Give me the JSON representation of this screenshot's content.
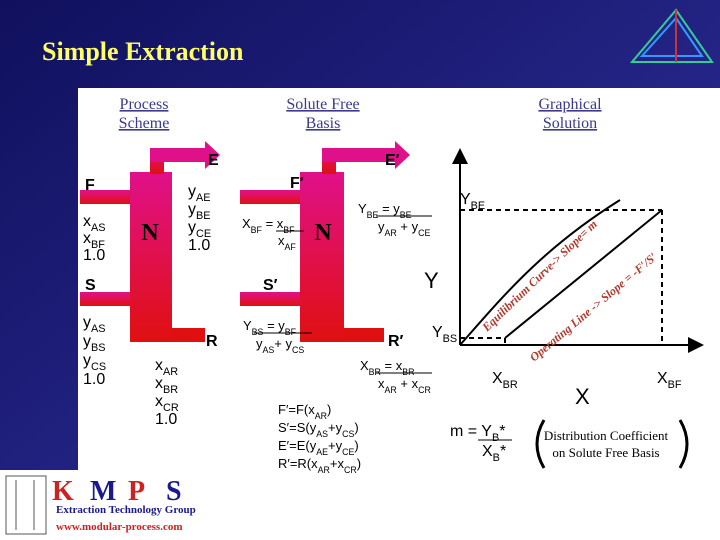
{
  "title": "Simple Extraction",
  "sections": {
    "process_scheme": [
      "Process",
      "Scheme"
    ],
    "solute_free_basis": [
      "Solute Free",
      "Basis"
    ],
    "graphical_solution": [
      "Graphical",
      "Solution"
    ]
  },
  "process_scheme": {
    "column": "N",
    "feed": {
      "label": "F",
      "composition": [
        [
          {
            "base": "x",
            "sub": "AS"
          }
        ],
        [
          {
            "base": "x",
            "sub": "BF"
          }
        ],
        [
          {
            "base": "1.0"
          }
        ]
      ]
    },
    "extract": {
      "label": "E",
      "composition": [
        [
          {
            "base": "y",
            "sub": "AE"
          }
        ],
        [
          {
            "base": "y",
            "sub": "BE"
          }
        ],
        [
          {
            "base": "y",
            "sub": "CE"
          }
        ],
        [
          {
            "base": "1.0"
          }
        ]
      ]
    },
    "solvent": {
      "label": "S",
      "composition": [
        [
          {
            "base": "y",
            "sub": "AS"
          }
        ],
        [
          {
            "base": "y",
            "sub": "BS"
          }
        ],
        [
          {
            "base": "y",
            "sub": "CS"
          }
        ],
        [
          {
            "base": "1.0"
          }
        ]
      ]
    },
    "raffinate": {
      "label": "R",
      "composition": [
        [
          {
            "base": "x",
            "sub": "AR"
          }
        ],
        [
          {
            "base": "x",
            "sub": "BR"
          }
        ],
        [
          {
            "base": "x",
            "sub": "CR"
          }
        ],
        [
          {
            "base": "1.0"
          }
        ]
      ]
    }
  },
  "solute_free_basis": {
    "column": "N",
    "feed": "F′",
    "extract": "E′",
    "solvent": "S′",
    "raffinate": "R′",
    "x_bf": {
      "numerator": [
        {
          "base": "X",
          "sub": "BF"
        },
        {
          "base": " = x",
          "sub": "BF"
        }
      ],
      "denominator": [
        {
          "base": "x",
          "sub": "AF"
        }
      ]
    },
    "y_be": {
      "numerator": [
        {
          "base": "Y",
          "sub": "BE"
        },
        {
          "base": " = y",
          "sub": "BE"
        }
      ],
      "denominator": [
        {
          "base": "y",
          "sub": "AR"
        },
        {
          "base": " + y",
          "sub": "CE"
        }
      ]
    },
    "y_bs": {
      "numerator": [
        {
          "base": "Y",
          "sub": "BS"
        },
        {
          "base": " = y",
          "sub": "BF"
        }
      ],
      "denominator": [
        {
          "base": "y",
          "sub": "AS"
        },
        {
          "base": "+ y",
          "sub": "CS"
        }
      ]
    },
    "x_br": {
      "numerator": [
        {
          "base": "X",
          "sub": "BR"
        },
        {
          "base": " = x",
          "sub": "BR"
        }
      ],
      "denominator": [
        {
          "base": "x",
          "sub": "AR"
        },
        {
          "base": " + x",
          "sub": "CR"
        }
      ]
    },
    "definitions": [
      [
        {
          "base": "F′=F(x",
          "sub": "AR"
        },
        {
          "base": ")"
        }
      ],
      [
        {
          "base": "S′=S(y",
          "sub": "AS"
        },
        {
          "base": "+y",
          "sub": "CS"
        },
        {
          "base": ")"
        }
      ],
      [
        {
          "base": "E′=E(y",
          "sub": "AE"
        },
        {
          "base": "+y",
          "sub": "CE"
        },
        {
          "base": ")"
        }
      ],
      [
        {
          "base": "R′=R(x",
          "sub": "AR"
        },
        {
          "base": "+x",
          "sub": "CR"
        },
        {
          "base": ")"
        }
      ]
    ]
  },
  "graphical_solution": {
    "y_axis": "Y",
    "x_axis": "X",
    "y_be": [
      {
        "base": "Y",
        "sub": "BE"
      }
    ],
    "y_bs": [
      {
        "base": "Y",
        "sub": "BS"
      }
    ],
    "x_br": [
      {
        "base": "X",
        "sub": "BR"
      }
    ],
    "x_bf": [
      {
        "base": "X",
        "sub": "BF"
      }
    ],
    "equilibrium_curve": "Equilibrium Curve-> Slope= m",
    "operating_line": "Operating Line -> Slope = -F′/S′",
    "m_numerator": [
      {
        "base": "m = Y",
        "sub": "B"
      },
      {
        "base": "*"
      }
    ],
    "m_denominator": [
      {
        "base": "X",
        "sub": "B"
      },
      {
        "base": "*"
      }
    ],
    "distribution_coefficient": [
      "Distribution Coefficient",
      "on Solute Free Basis"
    ]
  },
  "logo": {
    "letters": [
      "K",
      "M",
      "P",
      "S"
    ],
    "group": "Extraction Technology Group",
    "url": "www.modular-process.com"
  }
}
